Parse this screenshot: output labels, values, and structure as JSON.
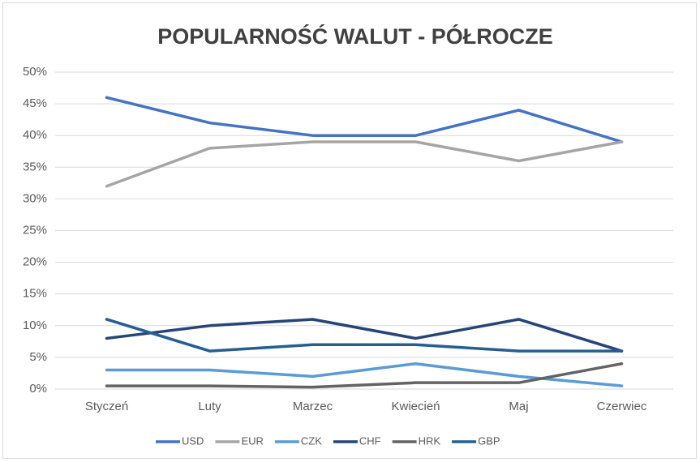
{
  "chart_data": {
    "type": "line",
    "title": "POPULARNOŚĆ WALUT - PÓŁROCZE",
    "categories": [
      "Styczeń",
      "Luty",
      "Marzec",
      "Kwiecień",
      "Maj",
      "Czerwiec"
    ],
    "series": [
      {
        "name": "USD",
        "color": "#4472c4",
        "values": [
          46,
          42,
          40,
          40,
          44,
          39
        ]
      },
      {
        "name": "EUR",
        "color": "#a5a5a5",
        "values": [
          32,
          38,
          39,
          39,
          36,
          39
        ]
      },
      {
        "name": "CZK",
        "color": "#5b9bd5",
        "values": [
          3,
          3,
          2,
          4,
          2,
          0.5
        ]
      },
      {
        "name": "CHF",
        "color": "#264478",
        "values": [
          8,
          10,
          11,
          8,
          11,
          6
        ]
      },
      {
        "name": "HRK",
        "color": "#636363",
        "values": [
          0.5,
          0.5,
          0.3,
          1,
          1,
          4
        ]
      },
      {
        "name": "GBP",
        "color": "#255e91",
        "values": [
          11,
          6,
          7,
          7,
          6,
          6
        ]
      }
    ],
    "ylim": [
      0,
      50
    ],
    "yticks": [
      {
        "value": 0,
        "label": "0%"
      },
      {
        "value": 5,
        "label": "5%"
      },
      {
        "value": 10,
        "label": "10%"
      },
      {
        "value": 15,
        "label": "15%"
      },
      {
        "value": 20,
        "label": "20%"
      },
      {
        "value": 25,
        "label": "25%"
      },
      {
        "value": 30,
        "label": "30%"
      },
      {
        "value": 35,
        "label": "35%"
      },
      {
        "value": 40,
        "label": "40%"
      },
      {
        "value": 45,
        "label": "45%"
      },
      {
        "value": 50,
        "label": "50%"
      }
    ],
    "grid": true,
    "legend": "bottom"
  }
}
